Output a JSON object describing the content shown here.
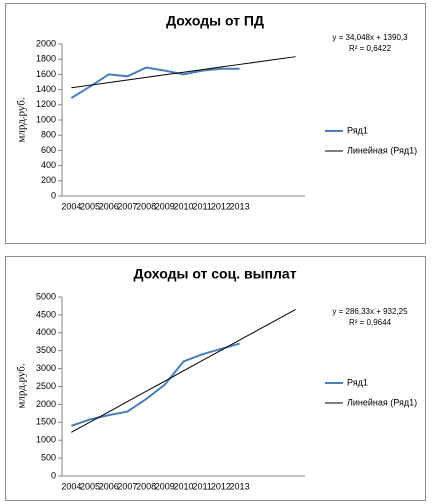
{
  "chart_data": [
    {
      "type": "line",
      "title": "Доходы от ПД",
      "y_label": "млрд.руб.",
      "equation": "y = 34,048x + 1390,3",
      "r_squared": "R² = 0,6422",
      "categories": [
        "2004",
        "2005",
        "2006",
        "2007",
        "2008",
        "2009",
        "2010",
        "2011",
        "2012",
        "2013",
        null,
        null,
        null
      ],
      "series": [
        {
          "name": "Ряд1",
          "color": "#4a7ebb",
          "values": [
            1290,
            1440,
            1600,
            1575,
            1690,
            1650,
            1600,
            1650,
            1675,
            1675,
            null,
            null,
            null
          ]
        },
        {
          "name": "Линейная (Ряд1)",
          "color": "#000000",
          "values": [
            1424,
            1458,
            1492,
            1526,
            1561,
            1595,
            1629,
            1663,
            1697,
            1731,
            1765,
            1799,
            1833
          ]
        }
      ],
      "ylim": [
        0,
        2000
      ],
      "yticks": [
        0,
        200,
        400,
        600,
        800,
        1000,
        1200,
        1400,
        1600,
        1800,
        2000
      ]
    },
    {
      "type": "line",
      "title": "Доходы от соц. выплат",
      "y_label": "млрд.руб.",
      "equation": "y = 286,33x + 932,25",
      "r_squared": "R² = 0,9644",
      "categories": [
        "2004",
        "2005",
        "2006",
        "2007",
        "2008",
        "2009",
        "2010",
        "2011",
        "2012",
        "2013",
        null,
        null,
        null
      ],
      "series": [
        {
          "name": "Ряд1",
          "color": "#4a7ebb",
          "values": [
            1400,
            1580,
            1700,
            1800,
            2150,
            2550,
            3200,
            3400,
            3550,
            3700,
            null,
            null,
            null
          ]
        },
        {
          "name": "Линейная (Ряд1)",
          "color": "#000000",
          "values": [
            1219,
            1505,
            1791,
            2078,
            2364,
            2650,
            2937,
            3223,
            3509,
            3796,
            4082,
            4368,
            4654
          ]
        }
      ],
      "ylim": [
        0,
        5000
      ],
      "yticks": [
        0,
        500,
        1000,
        1500,
        2000,
        2500,
        3000,
        3500,
        4000,
        4500,
        5000
      ]
    }
  ]
}
